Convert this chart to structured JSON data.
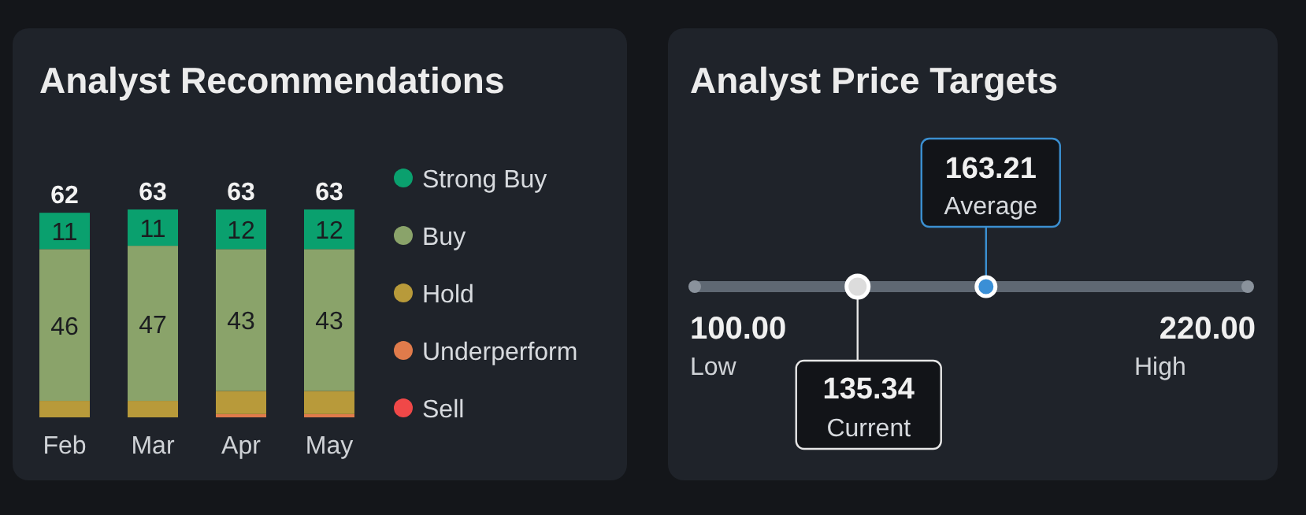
{
  "chart_data": [
    {
      "type": "bar",
      "title": "Analyst Recommendations",
      "categories": [
        "Feb",
        "Mar",
        "Apr",
        "May"
      ],
      "stacked": true,
      "legend": "right",
      "totals": [
        "62",
        "63",
        "63",
        "63"
      ],
      "series": [
        {
          "name": "Sell",
          "color": "#f04848",
          "values": [
            0,
            0,
            0,
            0
          ],
          "value_labels": [
            null,
            null,
            null,
            null
          ]
        },
        {
          "name": "Underperform",
          "color": "#e07b4b",
          "values": [
            0,
            0,
            1,
            1
          ],
          "value_labels": [
            null,
            null,
            null,
            null
          ]
        },
        {
          "name": "Hold",
          "color": "#b89a3a",
          "values": [
            5,
            5,
            7,
            7
          ],
          "value_labels": [
            null,
            null,
            null,
            null
          ]
        },
        {
          "name": "Buy",
          "color": "#8aa36a",
          "values": [
            46,
            47,
            43,
            43
          ],
          "value_labels": [
            "46",
            "47",
            "43",
            "43"
          ]
        },
        {
          "name": "Strong Buy",
          "color": "#0aa06e",
          "values": [
            11,
            11,
            12,
            12
          ],
          "value_labels": [
            "11",
            "11",
            "12",
            "12"
          ]
        }
      ]
    },
    {
      "type": "other",
      "title": "Analyst Price Targets",
      "categories": [
        "Low",
        "Current",
        "Average",
        "High"
      ],
      "values": [
        100,
        135.34,
        163.21,
        220
      ],
      "value_labels": [
        "100.00",
        "135.34",
        "163.21",
        "220.00"
      ]
    }
  ]
}
